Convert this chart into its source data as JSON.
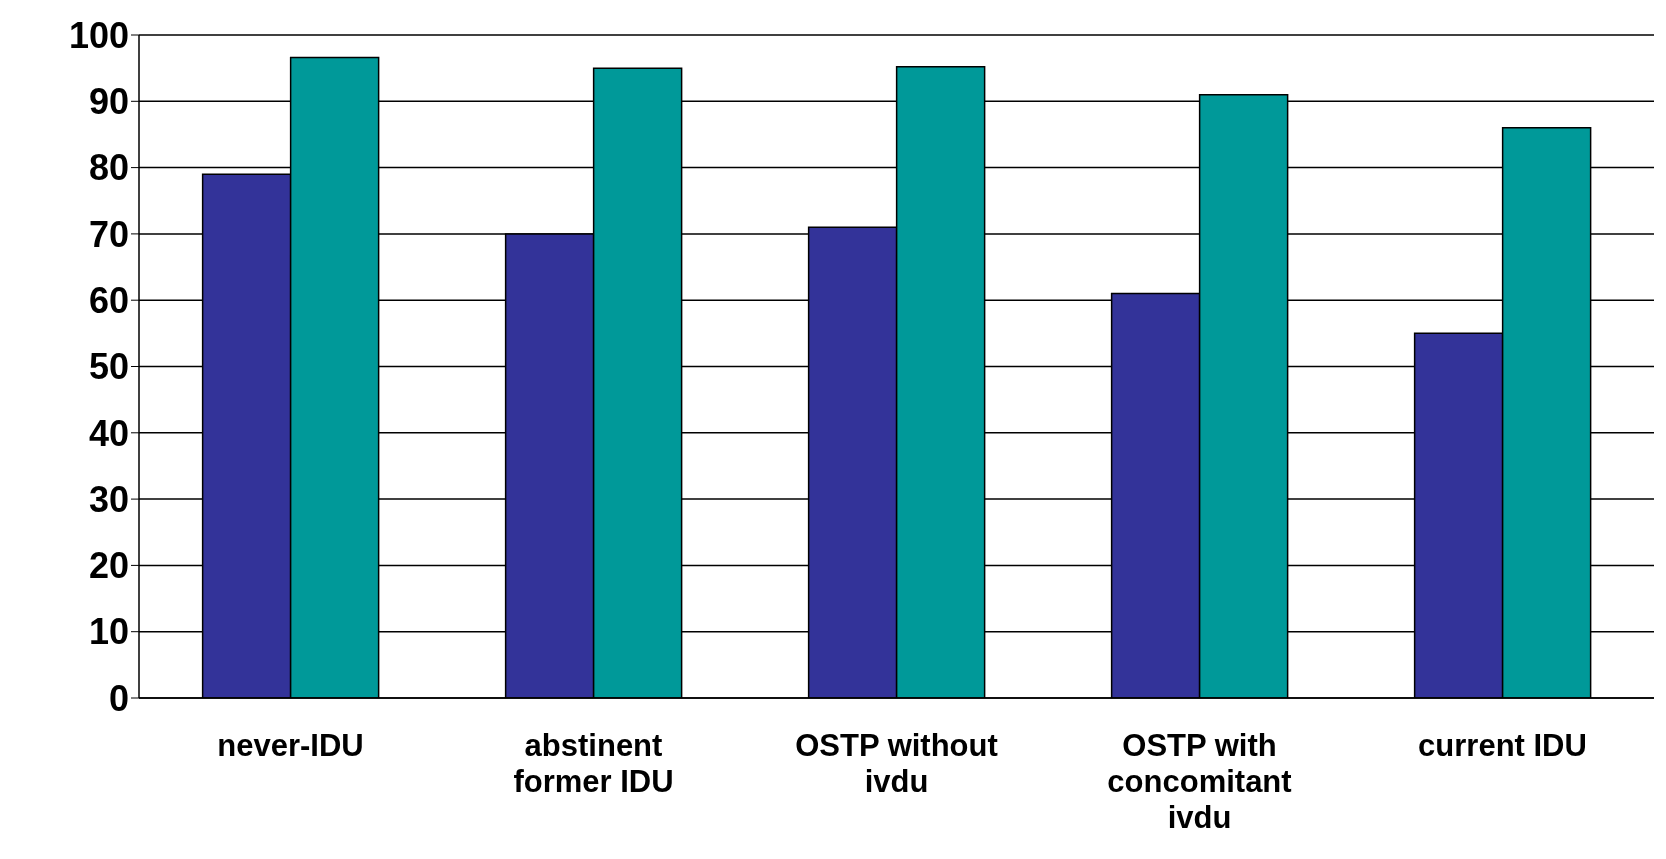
{
  "chart_data": {
    "type": "bar",
    "categories": [
      "never-IDU",
      "abstinent former IDU",
      "OSTP without ivdu",
      "OSTP with concomitant ivdu",
      "current IDU"
    ],
    "series": [
      {
        "color": "#333399",
        "values": [
          79,
          70,
          71,
          61,
          55
        ]
      },
      {
        "color": "#009999",
        "values": [
          96.6,
          95,
          95.2,
          91,
          86
        ]
      }
    ],
    "ylim": [
      0,
      100
    ],
    "yticks": [
      0,
      10,
      20,
      30,
      40,
      50,
      60,
      70,
      80,
      90,
      100
    ],
    "grid": "y",
    "legend": false
  }
}
